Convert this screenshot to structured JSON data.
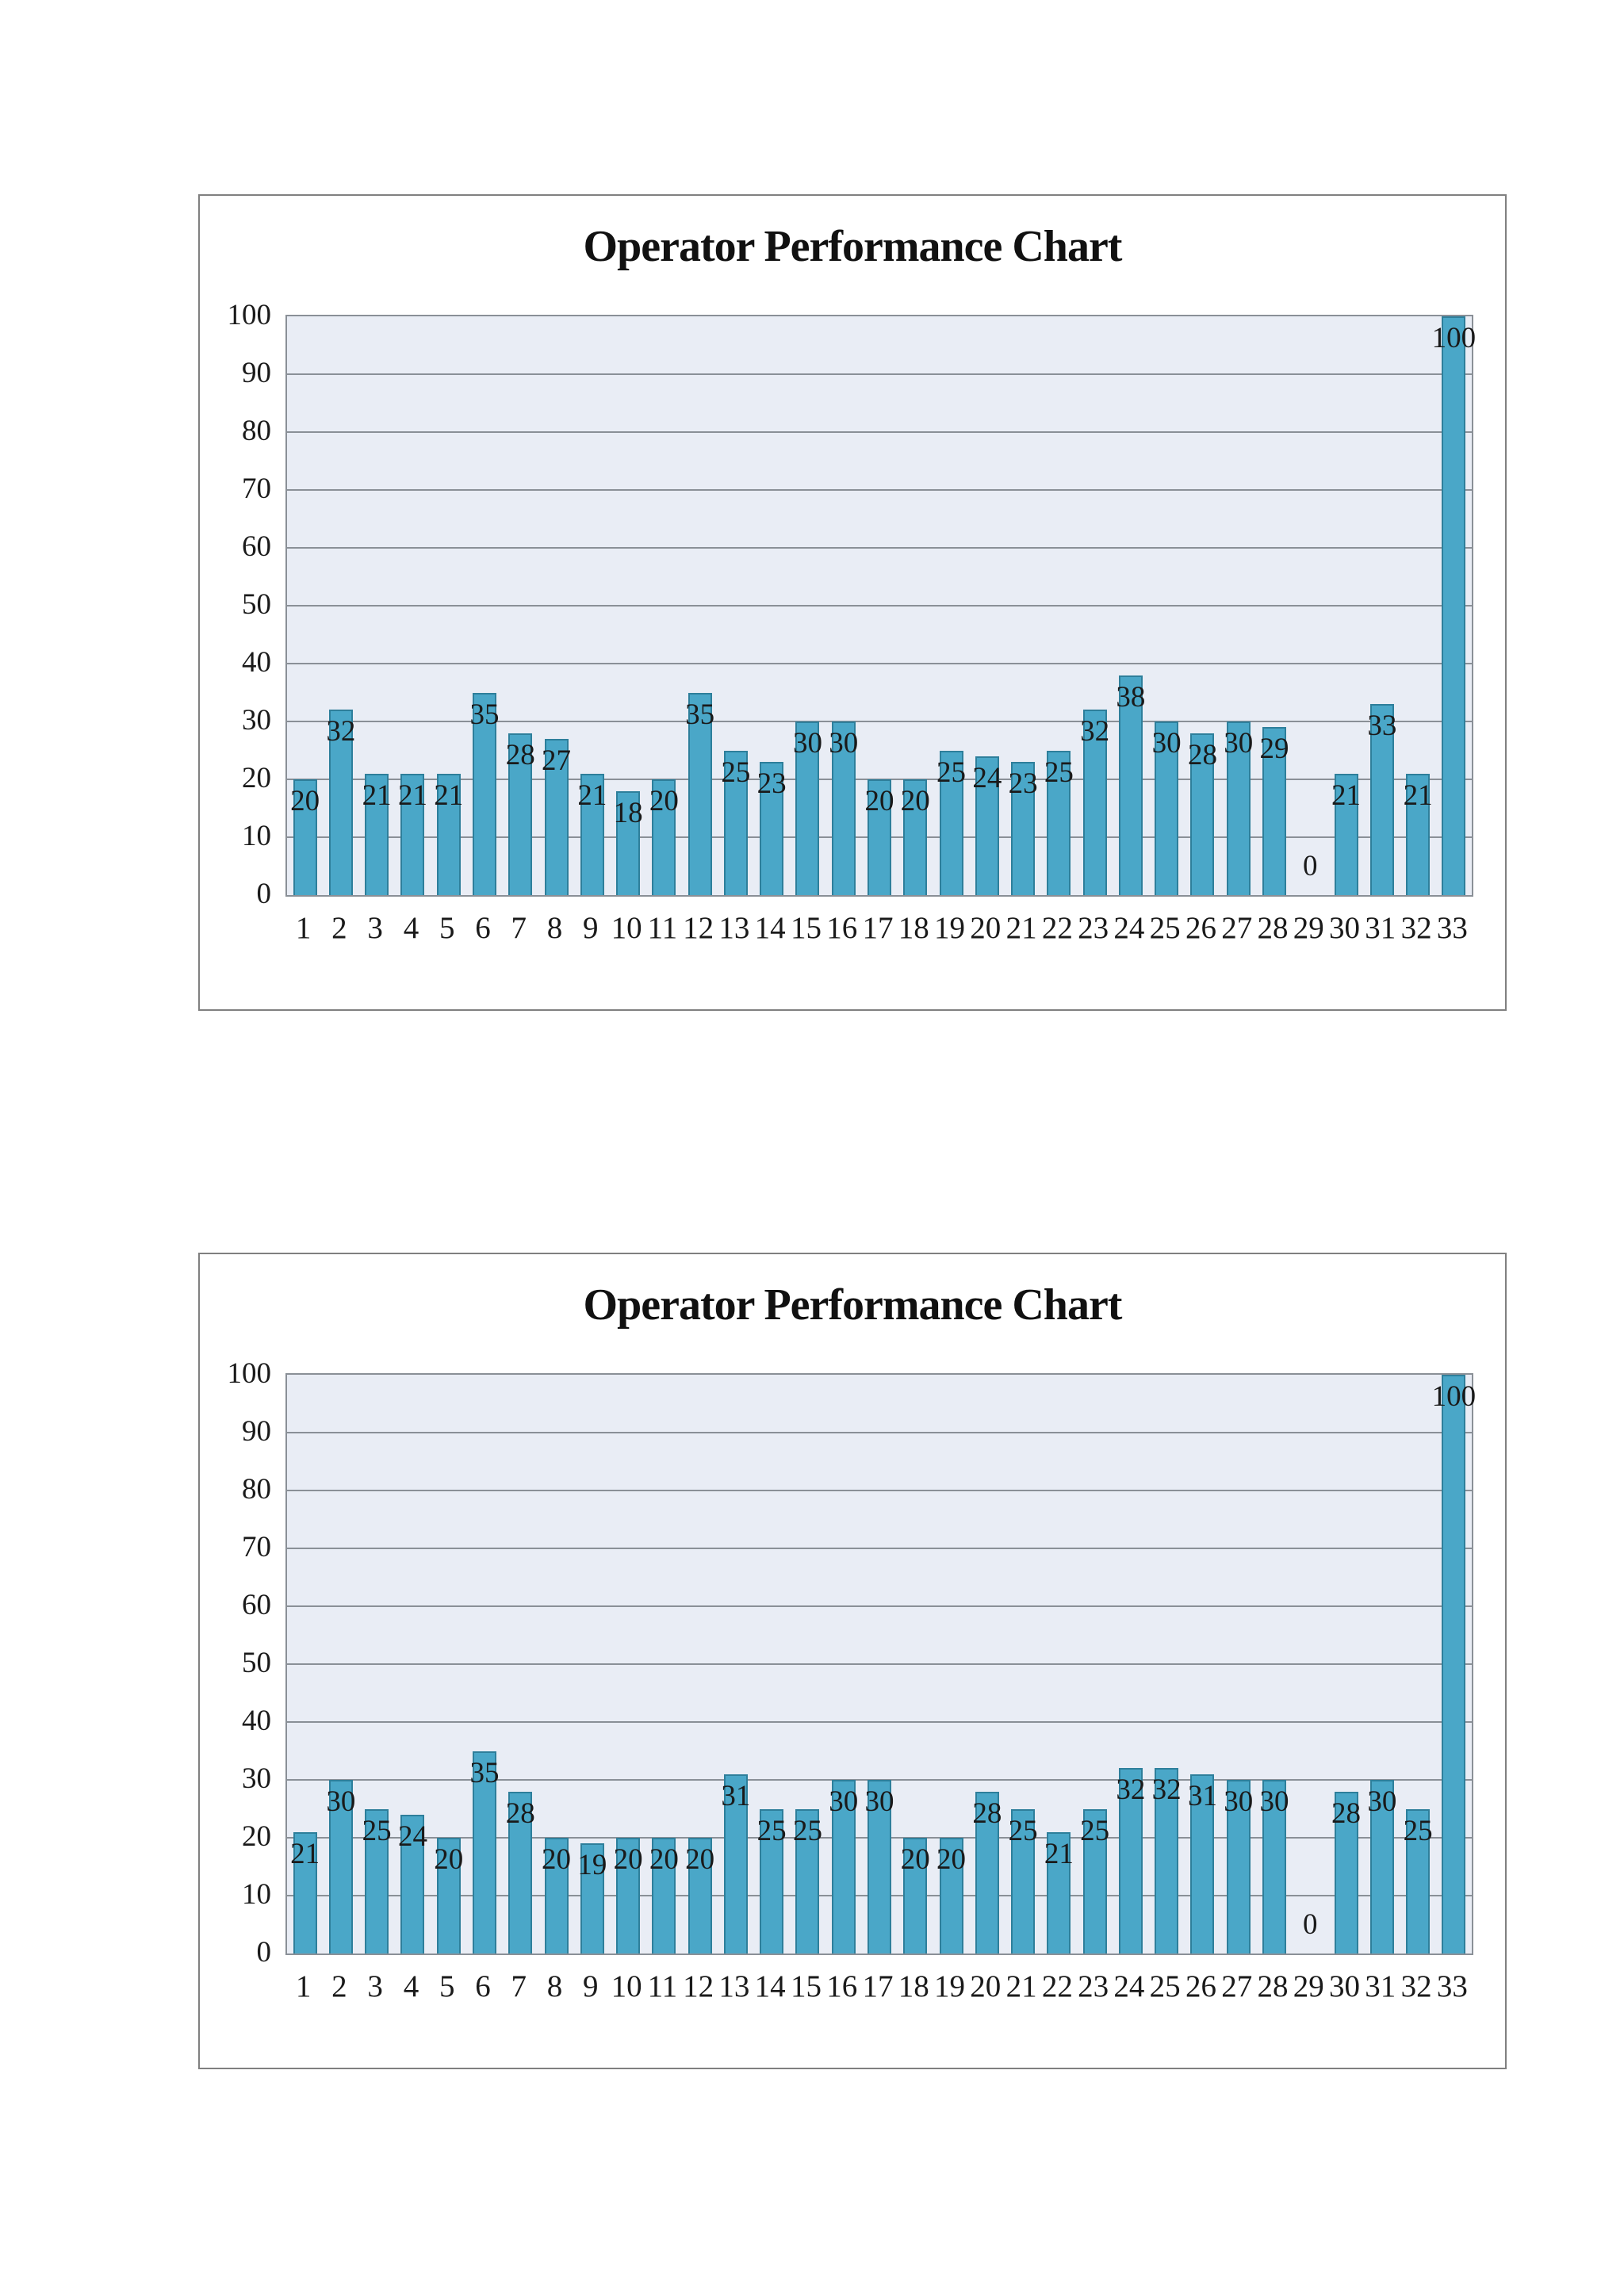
{
  "page": {
    "background": "#FFFFFF"
  },
  "chart_data": [
    {
      "type": "bar",
      "title": "Operator Performance Chart",
      "xlabel": "",
      "ylabel": "",
      "ylim": [
        0,
        100
      ],
      "yticks": [
        0,
        10,
        20,
        30,
        40,
        50,
        60,
        70,
        80,
        90,
        100
      ],
      "grid": true,
      "legend": "none",
      "data_labels": "inside-end",
      "categories": [
        "1",
        "2",
        "3",
        "4",
        "5",
        "6",
        "7",
        "8",
        "9",
        "10",
        "11",
        "12",
        "13",
        "14",
        "15",
        "16",
        "17",
        "18",
        "19",
        "20",
        "21",
        "22",
        "23",
        "24",
        "25",
        "26",
        "27",
        "28",
        "29",
        "30",
        "31",
        "32",
        "33"
      ],
      "values": [
        20,
        32,
        21,
        21,
        21,
        35,
        28,
        27,
        21,
        18,
        20,
        35,
        25,
        23,
        30,
        30,
        20,
        20,
        25,
        24,
        23,
        25,
        32,
        38,
        30,
        28,
        30,
        29,
        0,
        21,
        33,
        21,
        100
      ],
      "colors": {
        "bar_fill": "#4AA7C8",
        "bar_border": "#2E7F9B",
        "plot_background": "#E9EDF5",
        "gridline": "#8A9097",
        "frame_border": "#808080",
        "text": "#1A1A1A"
      }
    },
    {
      "type": "bar",
      "title": "Operator Performance Chart",
      "xlabel": "",
      "ylabel": "",
      "ylim": [
        0,
        100
      ],
      "yticks": [
        0,
        10,
        20,
        30,
        40,
        50,
        60,
        70,
        80,
        90,
        100
      ],
      "grid": true,
      "legend": "none",
      "data_labels": "inside-end",
      "categories": [
        "1",
        "2",
        "3",
        "4",
        "5",
        "6",
        "7",
        "8",
        "9",
        "10",
        "11",
        "12",
        "13",
        "14",
        "15",
        "16",
        "17",
        "18",
        "19",
        "20",
        "21",
        "22",
        "23",
        "24",
        "25",
        "26",
        "27",
        "28",
        "29",
        "30",
        "31",
        "32",
        "33"
      ],
      "values": [
        21,
        30,
        25,
        24,
        20,
        35,
        28,
        20,
        19,
        20,
        20,
        20,
        31,
        25,
        25,
        30,
        30,
        20,
        20,
        28,
        25,
        21,
        25,
        32,
        32,
        31,
        30,
        30,
        0,
        28,
        30,
        25,
        100
      ],
      "colors": {
        "bar_fill": "#4AA7C8",
        "bar_border": "#2E7F9B",
        "plot_background": "#E9EDF5",
        "gridline": "#8A9097",
        "frame_border": "#808080",
        "text": "#1A1A1A"
      }
    }
  ]
}
